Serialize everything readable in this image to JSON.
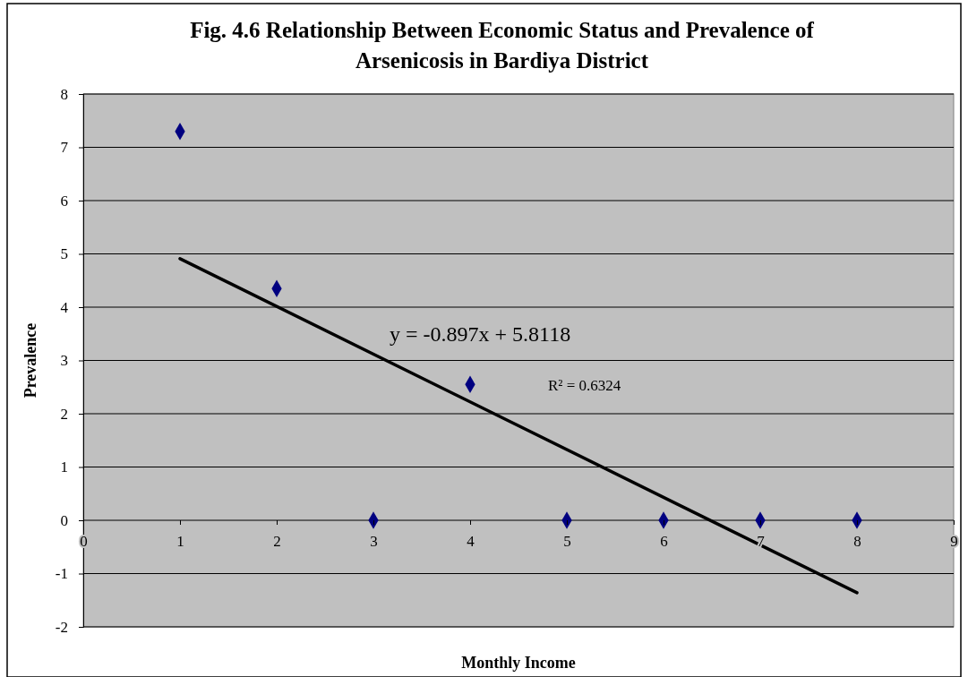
{
  "chart_data": {
    "type": "scatter",
    "title": "Fig. 4.6 Relationship Between Economic Status and Prevalence of Arsenicosis in Bardiya District",
    "xlabel": "Monthly Income",
    "ylabel": "Prevalence",
    "x": [
      1,
      2,
      3,
      4,
      5,
      6,
      7,
      8
    ],
    "series": [
      {
        "color": "#000080",
        "marker": "diamond",
        "values": [
          7.3,
          4.35,
          0,
          2.55,
          0,
          0,
          0,
          0
        ]
      },
      {
        "type": "line",
        "color": "#000000",
        "line_style": "solid",
        "marker": "none",
        "x": [
          1,
          8
        ],
        "values": [
          4.91,
          -1.36
        ]
      }
    ],
    "xlim": [
      0,
      9
    ],
    "xticks": [
      0,
      1,
      2,
      3,
      4,
      5,
      6,
      7,
      8,
      9
    ],
    "ylim": [
      -2,
      8
    ],
    "yticks": [
      -2,
      -1,
      0,
      1,
      2,
      3,
      4,
      5,
      6,
      7,
      8
    ],
    "grid": "y",
    "annotations": [
      "y = -0.897x + 5.8118",
      "R² = 0.6324"
    ]
  }
}
